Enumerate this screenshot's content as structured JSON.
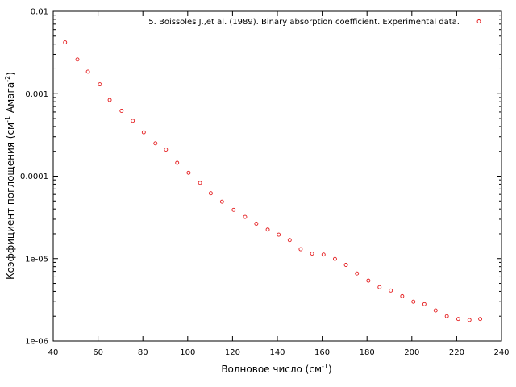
{
  "chart_data": {
    "type": "scatter",
    "title": "",
    "xlabel": "Волновое число (см",
    "xlabel_sup": "-1",
    "xlabel_end": ")",
    "ylabel": "Коэффициент поглощения (см",
    "ylabel_sup1": "-1",
    "ylabel_mid": " Амага",
    "ylabel_sup2": "-2",
    "ylabel_end": ")",
    "xlim": [
      40,
      240
    ],
    "ylim": [
      1e-06,
      0.01
    ],
    "yscale": "log",
    "x_ticks": [
      "40",
      "60",
      "80",
      "100",
      "120",
      "140",
      "160",
      "180",
      "200",
      "220",
      "240"
    ],
    "y_ticks": [
      {
        "value": 0.01,
        "label": "0.01"
      },
      {
        "value": 0.001,
        "label": "0.001"
      },
      {
        "value": 0.0001,
        "label": "0.0001"
      },
      {
        "value": 1e-05,
        "label": "1e-05"
      },
      {
        "value": 1e-06,
        "label": "1e-06"
      }
    ],
    "grid": false,
    "legend_position": "top-right",
    "series": [
      {
        "name": "5. Boissoles J.,et al. (1989). Binary absorption coefficient. Experimental data.",
        "color": "#e41a1c",
        "marker": "open-circle",
        "x": [
          45.3,
          50.8,
          55.5,
          60.8,
          65.2,
          70.5,
          75.5,
          80.4,
          85.6,
          90.3,
          95.3,
          100.4,
          105.5,
          110.3,
          115.3,
          120.5,
          125.6,
          130.6,
          135.7,
          140.6,
          145.5,
          150.4,
          155.5,
          160.6,
          165.7,
          170.6,
          175.5,
          180.6,
          185.6,
          190.6,
          195.7,
          200.7,
          205.6,
          210.6,
          215.6,
          220.7,
          225.7,
          230.5
        ],
        "y": [
          0.0042,
          0.0026,
          0.00185,
          0.0013,
          0.00084,
          0.00062,
          0.00047,
          0.00034,
          0.00025,
          0.00021,
          0.000145,
          0.00011,
          8.3e-05,
          6.2e-05,
          4.9e-05,
          3.9e-05,
          3.2e-05,
          2.65e-05,
          2.25e-05,
          1.95e-05,
          1.68e-05,
          1.3e-05,
          1.15e-05,
          1.12e-05,
          9.9e-06,
          8.4e-06,
          6.6e-06,
          5.4e-06,
          4.5e-06,
          4.1e-06,
          3.5e-06,
          3e-06,
          2.8e-06,
          2.35e-06,
          2e-06,
          1.85e-06,
          1.8e-06,
          1.85e-06
        ]
      }
    ]
  }
}
